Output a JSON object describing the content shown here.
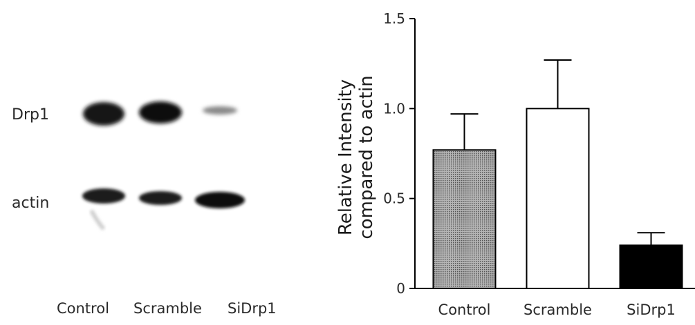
{
  "blot": {
    "rows": [
      "Drp1",
      "actin"
    ],
    "lanes": [
      "Control",
      "Scramble",
      "SiDrp1"
    ]
  },
  "chart_data": {
    "type": "bar",
    "categories": [
      "Control",
      "Scramble",
      "SiDrp1"
    ],
    "values": [
      0.77,
      1.0,
      0.24
    ],
    "errors": [
      0.2,
      0.27,
      0.07
    ],
    "ylim": [
      0,
      1.5
    ],
    "yticks": [
      "0",
      "0.5",
      "1.0",
      "1.5"
    ],
    "ylabel_lines": [
      "Relative Intensity",
      "compared to actin"
    ],
    "title": "",
    "xlabel": "",
    "bar_fills": [
      "pattern-gray",
      "#ffffff",
      "#000000"
    ],
    "grid": false
  }
}
